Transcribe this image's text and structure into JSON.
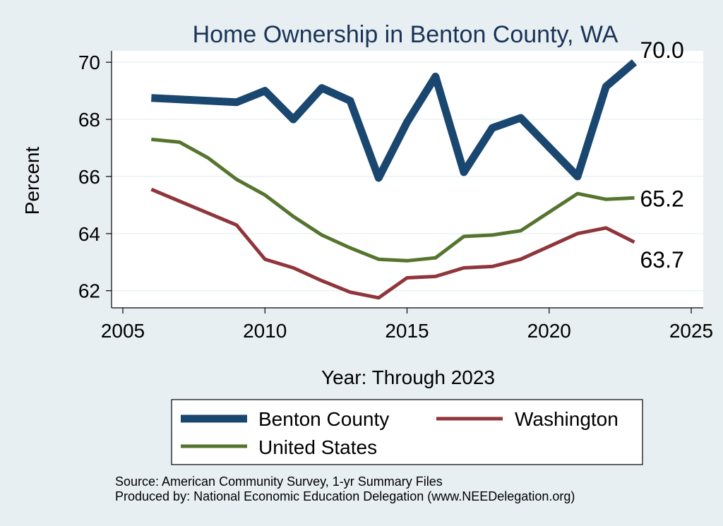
{
  "chart_data": {
    "type": "line",
    "title": "Home Ownership in Benton County, WA",
    "xlabel": "Year: Through 2023",
    "ylabel": "Percent",
    "xlim": [
      2005,
      2025
    ],
    "ylim": [
      61.4,
      70.4
    ],
    "x_ticks": [
      2005,
      2010,
      2015,
      2020,
      2025
    ],
    "y_ticks": [
      62,
      64,
      66,
      68,
      70
    ],
    "grid": true,
    "legend": "bottom",
    "series": [
      {
        "name": "Benton County",
        "color": "#1a476f",
        "end_label": "70.0",
        "points": [
          [
            2006,
            68.75
          ],
          [
            2009,
            68.6
          ],
          [
            2010,
            69.0
          ],
          [
            2011,
            68.0
          ],
          [
            2012,
            69.1
          ],
          [
            2013,
            68.65
          ],
          [
            2014,
            65.95
          ],
          [
            2015,
            67.9
          ],
          [
            2016,
            69.5
          ],
          [
            2017,
            66.15
          ],
          [
            2018,
            67.7
          ],
          [
            2019,
            68.05
          ],
          [
            2021,
            66.0
          ],
          [
            2022,
            69.15
          ],
          [
            2023,
            70.0
          ]
        ]
      },
      {
        "name": "Washington",
        "color": "#90353b",
        "end_label": "63.7",
        "points": [
          [
            2006,
            65.55
          ],
          [
            2009,
            64.3
          ],
          [
            2010,
            63.1
          ],
          [
            2011,
            62.8
          ],
          [
            2012,
            62.35
          ],
          [
            2013,
            61.95
          ],
          [
            2014,
            61.75
          ],
          [
            2015,
            62.45
          ],
          [
            2016,
            62.5
          ],
          [
            2017,
            62.8
          ],
          [
            2018,
            62.85
          ],
          [
            2019,
            63.1
          ],
          [
            2021,
            64.0
          ],
          [
            2022,
            64.2
          ],
          [
            2023,
            63.7
          ]
        ]
      },
      {
        "name": "United States",
        "color": "#55752f",
        "end_label": "65.2",
        "points": [
          [
            2006,
            67.3
          ],
          [
            2007,
            67.2
          ],
          [
            2008,
            66.65
          ],
          [
            2009,
            65.9
          ],
          [
            2010,
            65.35
          ],
          [
            2011,
            64.6
          ],
          [
            2012,
            63.95
          ],
          [
            2013,
            63.5
          ],
          [
            2014,
            63.1
          ],
          [
            2015,
            63.05
          ],
          [
            2016,
            63.15
          ],
          [
            2017,
            63.9
          ],
          [
            2018,
            63.95
          ],
          [
            2019,
            64.1
          ],
          [
            2021,
            65.4
          ],
          [
            2022,
            65.2
          ],
          [
            2023,
            65.25
          ]
        ]
      }
    ]
  },
  "source_line": "Source: American Community Survey, 1-yr Summary Files",
  "produced_line": "Produced by: National Economic Education Delegation (www.NEEDelegation.org)"
}
